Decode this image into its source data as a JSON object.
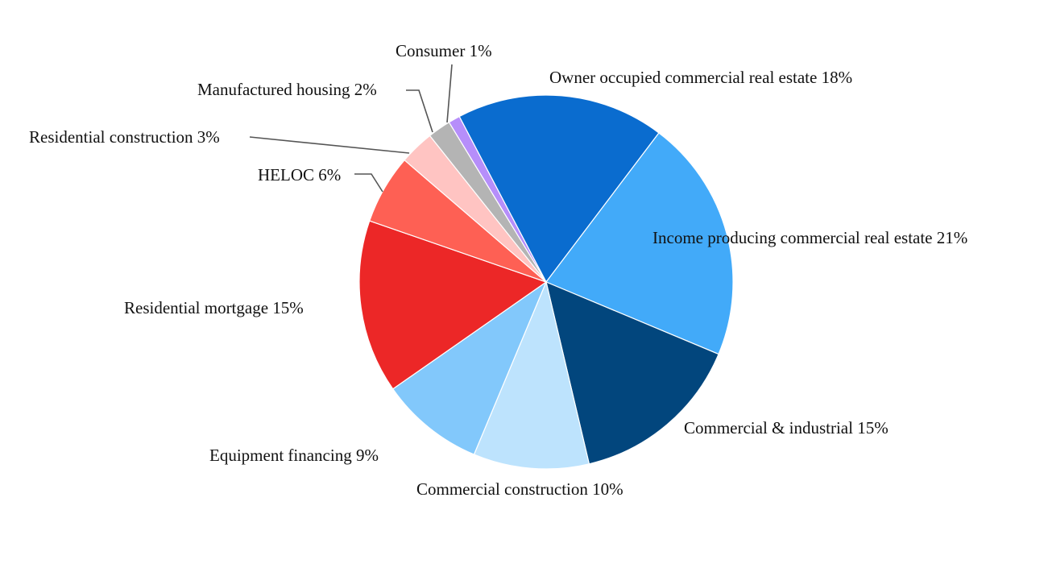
{
  "chart_data": {
    "type": "pie",
    "title": "",
    "slices": [
      {
        "label": "Owner occupied commercial real estate",
        "value": 18,
        "display": "Owner occupied commercial real estate 18%",
        "color": "#0a6ccf"
      },
      {
        "label": "Income producing commercial real estate",
        "value": 21,
        "display": "Income producing commercial real estate 21%",
        "color": "#42aaf9"
      },
      {
        "label": "Commercial & industrial",
        "value": 15,
        "display": "Commercial & industrial 15%",
        "color": "#02467d"
      },
      {
        "label": "Commercial construction",
        "value": 10,
        "display": "Commercial construction 10%",
        "color": "#bde3fd"
      },
      {
        "label": "Equipment financing",
        "value": 9,
        "display": "Equipment financing 9%",
        "color": "#82c8fb"
      },
      {
        "label": "Residential mortgage",
        "value": 15,
        "display": "Residential mortgage 15%",
        "color": "#ec2727"
      },
      {
        "label": "HELOC",
        "value": 6,
        "display": "HELOC 6%",
        "color": "#fe6054"
      },
      {
        "label": "Residential construction",
        "value": 3,
        "display": "Residential construction 3%",
        "color": "#ffc4c2"
      },
      {
        "label": "Manufactured housing",
        "value": 2,
        "display": "Manufactured housing 2%",
        "color": "#b4b4b4"
      },
      {
        "label": "Consumer",
        "value": 1,
        "display": "Consumer 1%",
        "color": "#b68efa"
      }
    ],
    "legend": "none",
    "label_style": "outside labels with leader lines for small slices"
  }
}
